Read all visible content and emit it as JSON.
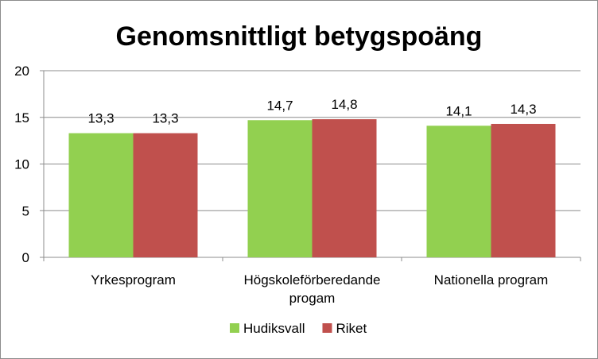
{
  "chart_data": {
    "type": "bar",
    "title": "Genomsnittligt betygspoäng",
    "xlabel": "",
    "ylabel": "",
    "ylim": [
      0,
      20
    ],
    "yticks": [
      "0",
      "5",
      "10",
      "15",
      "20"
    ],
    "grid": true,
    "legend_position": "bottom",
    "categories": [
      [
        "Yrkesprogram"
      ],
      [
        "Högskoleförberedande",
        "progam"
      ],
      [
        "Nationella program"
      ]
    ],
    "series": [
      {
        "name": "Hudiksvall",
        "color": "#92d050",
        "values": [
          13.3,
          14.7,
          14.1
        ],
        "labels": [
          "13,3",
          "14,7",
          "14,1"
        ]
      },
      {
        "name": "Riket",
        "color": "#c0504d",
        "values": [
          13.3,
          14.8,
          14.3
        ],
        "labels": [
          "13,3",
          "14,8",
          "14,3"
        ]
      }
    ]
  }
}
